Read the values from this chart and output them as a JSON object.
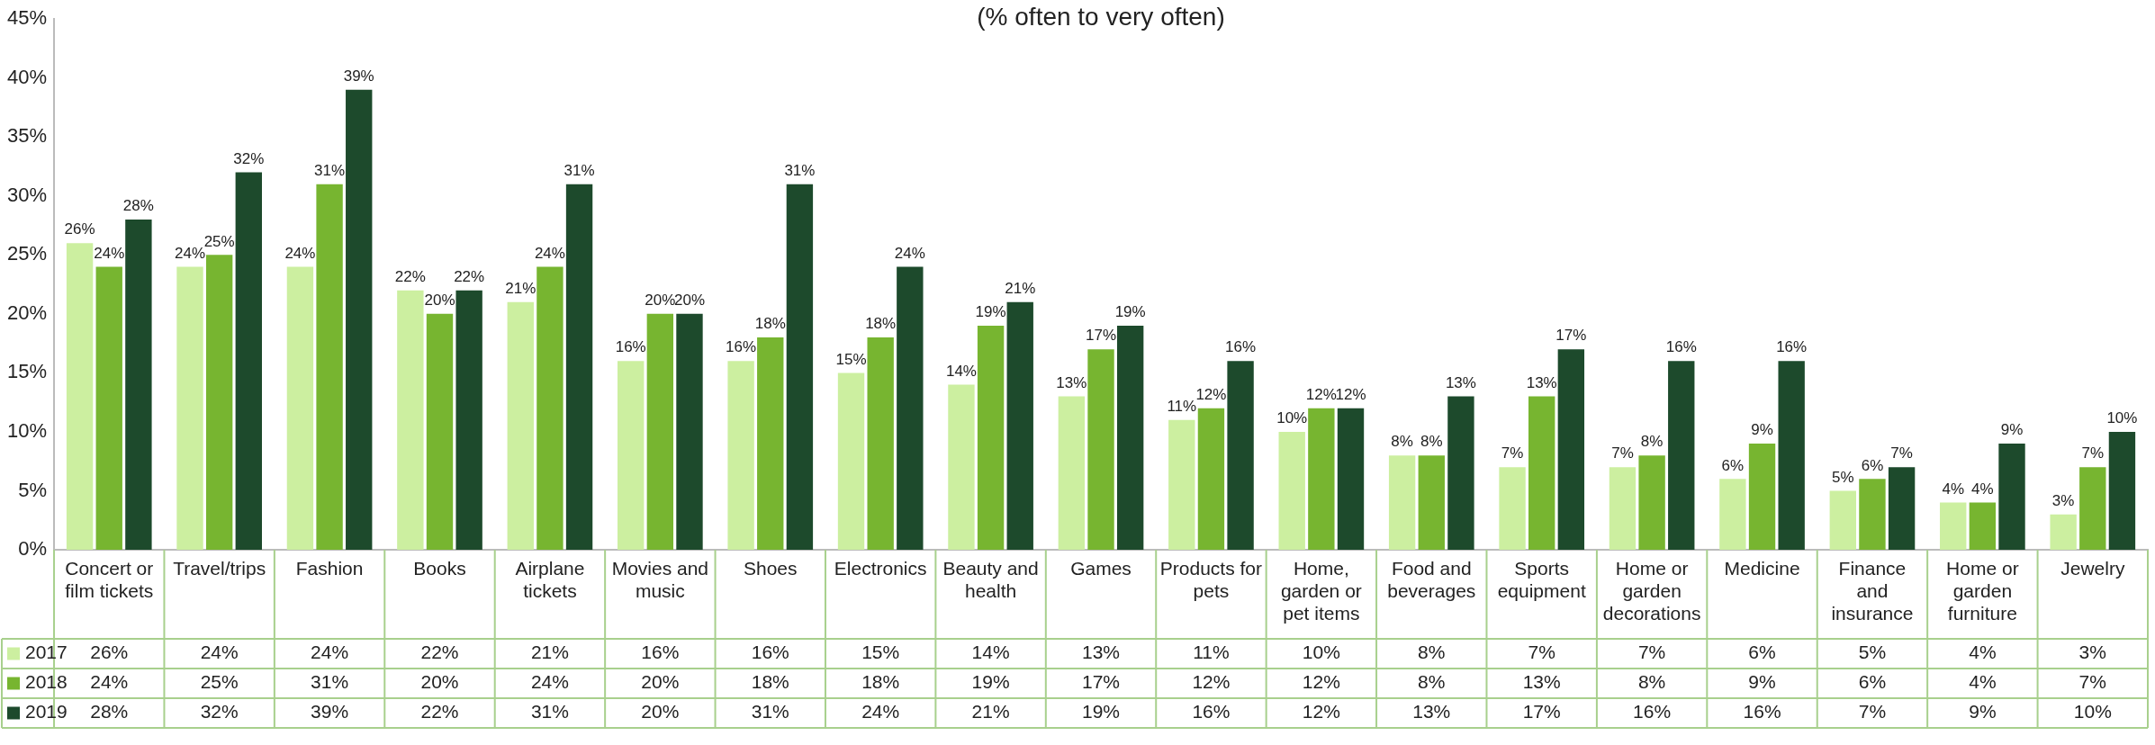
{
  "chart_data": {
    "type": "bar",
    "title": "(% often to very often)",
    "categories": [
      "Concert or film tickets",
      "Travel/trips",
      "Fashion",
      "Books",
      "Airplane tickets",
      "Movies and music",
      "Shoes",
      "Electronics",
      "Beauty and health",
      "Games",
      "Products for pets",
      "Home, garden or pet items",
      "Food and beverages",
      "Sports equipment",
      "Home or garden decorations",
      "Medicine",
      "Finance and insurance",
      "Home or garden furniture",
      "Jewelry"
    ],
    "series": [
      {
        "name": "2017",
        "color": "#ccefa0",
        "values": [
          26,
          24,
          24,
          22,
          21,
          16,
          16,
          15,
          14,
          13,
          11,
          10,
          8,
          7,
          7,
          6,
          5,
          4,
          3
        ],
        "value_labels": [
          "26%",
          "24%",
          "24%",
          "22%",
          "21%",
          "16%",
          "16%",
          "15%",
          "14%",
          "13%",
          "11%",
          "10%",
          "8%",
          "7%",
          "7%",
          "6%",
          "5%",
          "4%",
          "3%"
        ]
      },
      {
        "name": "2018",
        "color": "#77b530",
        "values": [
          24,
          25,
          31,
          20,
          24,
          20,
          18,
          18,
          19,
          17,
          12,
          12,
          8,
          13,
          8,
          9,
          6,
          4,
          7
        ],
        "value_labels": [
          "24%",
          "25%",
          "31%",
          "20%",
          "24%",
          "20%",
          "18%",
          "18%",
          "19%",
          "17%",
          "12%",
          "12%",
          "8%",
          "13%",
          "8%",
          "9%",
          "6%",
          "4%",
          "7%"
        ]
      },
      {
        "name": "2019",
        "color": "#1d4a2c",
        "values": [
          28,
          32,
          39,
          22,
          31,
          20,
          31,
          24,
          21,
          19,
          16,
          12,
          13,
          17,
          16,
          16,
          7,
          9,
          10
        ],
        "value_labels": [
          "28%",
          "32%",
          "39%",
          "22%",
          "31%",
          "20%",
          "31%",
          "24%",
          "21%",
          "19%",
          "16%",
          "12%",
          "13%",
          "17%",
          "16%",
          "16%",
          "7%",
          "9%",
          "10%"
        ]
      }
    ],
    "ylim": [
      0,
      45
    ],
    "yticks": [
      {
        "value": 0,
        "label": "0%"
      },
      {
        "value": 5,
        "label": "5%"
      },
      {
        "value": 10,
        "label": "10%"
      },
      {
        "value": 15,
        "label": "15%"
      },
      {
        "value": 20,
        "label": "20%"
      },
      {
        "value": 25,
        "label": "25%"
      },
      {
        "value": 30,
        "label": "30%"
      },
      {
        "value": 35,
        "label": "35%"
      },
      {
        "value": 40,
        "label": "40%"
      },
      {
        "value": 45,
        "label": "45%"
      }
    ],
    "grid": false,
    "legend": "bottom"
  }
}
